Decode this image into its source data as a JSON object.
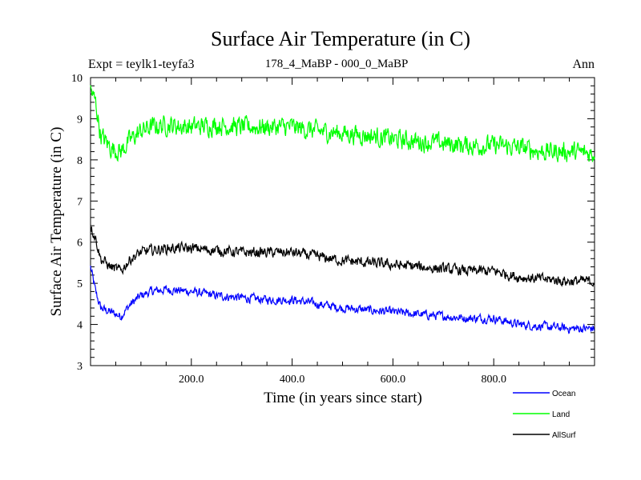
{
  "chart_data": {
    "type": "line",
    "title": "Surface Air Temperature (in C)",
    "subtitle_left": "Expt = teylk1-teyfa3",
    "subtitle_center": "178_4_MaBP - 000_0_MaBP",
    "subtitle_right": "Ann",
    "xlabel": "Time (in years since start)",
    "ylabel": "Surface Air Temperature (in C)",
    "xlim": [
      0,
      1000
    ],
    "ylim": [
      3,
      10
    ],
    "xticks": [
      200,
      400,
      600,
      800
    ],
    "xtick_labels": [
      "200.0",
      "400.0",
      "600.0",
      "800.0"
    ],
    "yticks": [
      3,
      4,
      5,
      6,
      7,
      8,
      9,
      10
    ],
    "ytick_labels": [
      "3",
      "4",
      "5",
      "6",
      "7",
      "8",
      "9",
      "10"
    ],
    "grid": false,
    "legend_position": "bottom-right",
    "series": [
      {
        "name": "Ocean",
        "color": "#0000ff",
        "x": [
          0,
          10,
          20,
          40,
          60,
          80,
          100,
          120,
          150,
          200,
          250,
          300,
          350,
          400,
          450,
          500,
          550,
          600,
          650,
          700,
          750,
          800,
          850,
          900,
          950,
          1000
        ],
        "values": [
          5.4,
          4.8,
          4.4,
          4.3,
          4.2,
          4.5,
          4.7,
          4.8,
          4.85,
          4.8,
          4.7,
          4.65,
          4.6,
          4.6,
          4.5,
          4.4,
          4.35,
          4.3,
          4.25,
          4.2,
          4.15,
          4.15,
          4.0,
          3.95,
          3.9,
          3.9
        ]
      },
      {
        "name": "Land",
        "color": "#00ff00",
        "x": [
          0,
          10,
          20,
          40,
          60,
          80,
          100,
          120,
          150,
          200,
          250,
          300,
          350,
          400,
          450,
          500,
          550,
          600,
          650,
          700,
          750,
          800,
          850,
          900,
          950,
          1000
        ],
        "values": [
          9.7,
          9.4,
          8.6,
          8.3,
          8.2,
          8.5,
          8.7,
          8.8,
          8.85,
          8.8,
          8.85,
          8.8,
          8.8,
          8.8,
          8.7,
          8.65,
          8.6,
          8.5,
          8.45,
          8.4,
          8.35,
          8.35,
          8.3,
          8.2,
          8.2,
          8.15
        ]
      },
      {
        "name": "AllSurf",
        "color": "#000000",
        "x": [
          0,
          10,
          20,
          40,
          60,
          80,
          100,
          120,
          150,
          200,
          250,
          300,
          350,
          400,
          450,
          500,
          550,
          600,
          650,
          700,
          750,
          800,
          850,
          900,
          950,
          1000
        ],
        "values": [
          6.4,
          6.1,
          5.6,
          5.4,
          5.3,
          5.6,
          5.75,
          5.8,
          5.85,
          5.85,
          5.8,
          5.75,
          5.75,
          5.75,
          5.65,
          5.55,
          5.5,
          5.45,
          5.4,
          5.35,
          5.3,
          5.3,
          5.15,
          5.1,
          5.05,
          5.05
        ]
      }
    ]
  }
}
